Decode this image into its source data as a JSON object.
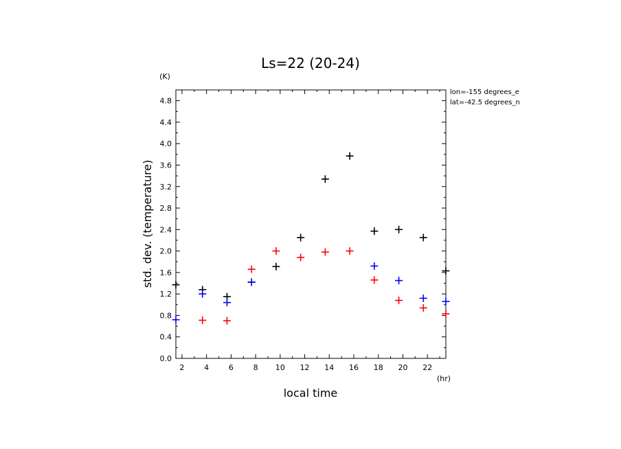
{
  "chart_data": {
    "type": "scatter",
    "title": "Ls=22 (20-24)",
    "xlabel": "local time",
    "xunit": "(hr)",
    "ylabel": "std. dev. (temperature)",
    "yunit": "(K)",
    "xlim": [
      1.5,
      23.5
    ],
    "ylim": [
      0,
      5.0
    ],
    "xticks": [
      2,
      4,
      6,
      8,
      10,
      12,
      14,
      16,
      18,
      20,
      22
    ],
    "yticks": [
      0.0,
      0.4,
      0.8,
      1.2,
      1.6,
      2.0,
      2.4,
      2.8,
      3.2,
      3.6,
      4.0,
      4.4,
      4.8
    ],
    "ytick_labels": [
      "0.0",
      "0.4",
      "0.8",
      "1.2",
      "1.6",
      "2.0",
      "2.4",
      "2.8",
      "3.2",
      "3.6",
      "4.0",
      "4.4",
      "4.8"
    ],
    "grid": false,
    "annotations": [
      "lon=-155 degrees_e",
      "lat=-42.5 degrees_n"
    ],
    "series": [
      {
        "color": "#000000",
        "x": [
          1.5,
          3.67,
          5.67,
          7.67,
          9.67,
          11.67,
          13.67,
          15.67,
          17.67,
          19.67,
          21.67,
          23.5
        ],
        "y": [
          1.37,
          1.28,
          1.15,
          1.42,
          1.71,
          2.25,
          3.34,
          3.77,
          2.37,
          2.4,
          2.25,
          1.63
        ]
      },
      {
        "color": "#0000ff",
        "x": [
          1.5,
          3.67,
          5.67,
          7.67,
          17.67,
          19.67,
          21.67,
          23.5
        ],
        "y": [
          0.72,
          1.2,
          1.04,
          1.42,
          1.72,
          1.45,
          1.12,
          1.06
        ]
      },
      {
        "color": "#ff0000",
        "x": [
          3.67,
          5.67,
          7.67,
          9.67,
          11.67,
          13.67,
          15.67,
          17.67,
          19.67,
          21.67,
          23.5
        ],
        "y": [
          0.71,
          0.7,
          1.66,
          2.0,
          1.88,
          1.98,
          2.0,
          1.46,
          1.08,
          0.94,
          0.83
        ]
      }
    ]
  }
}
